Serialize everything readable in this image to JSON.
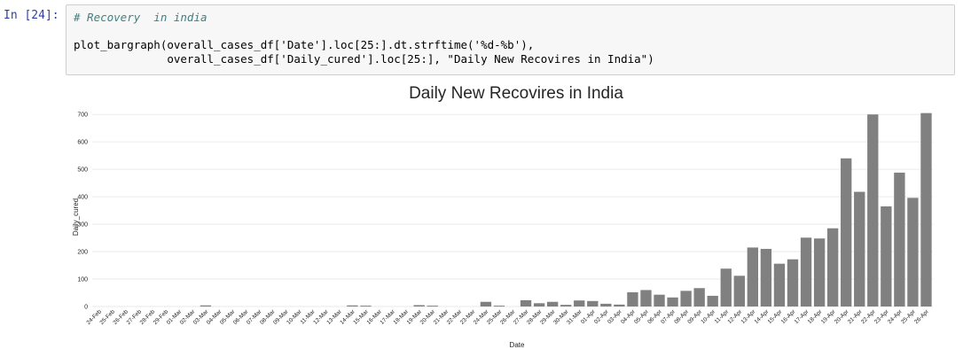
{
  "cell": {
    "prompt": "In [24]:",
    "code": {
      "line1": "# Recovery  in india",
      "line2": "",
      "line3": "plot_bargraph(overall_cases_df['Date'].loc[25:].dt.strftime('%d-%b'),",
      "line4": "              overall_cases_df['Daily_cured'].loc[25:], \"Daily New Recovires in India\")"
    }
  },
  "chart_data": {
    "type": "bar",
    "title": "Daily New Recovires in India",
    "xlabel": "Date",
    "ylabel": "Daily_cured",
    "ylim": [
      0,
      720
    ],
    "yticks": [
      0,
      100,
      200,
      300,
      400,
      500,
      600,
      700
    ],
    "grid": true,
    "bar_color": "#808080",
    "categories": [
      "24-Feb",
      "25-Feb",
      "26-Feb",
      "27-Feb",
      "28-Feb",
      "29-Feb",
      "01-Mar",
      "02-Mar",
      "03-Mar",
      "04-Mar",
      "05-Mar",
      "06-Mar",
      "07-Mar",
      "08-Mar",
      "09-Mar",
      "10-Mar",
      "11-Mar",
      "12-Mar",
      "13-Mar",
      "14-Mar",
      "15-Mar",
      "16-Mar",
      "17-Mar",
      "18-Mar",
      "19-Mar",
      "20-Mar",
      "21-Mar",
      "22-Mar",
      "23-Mar",
      "24-Mar",
      "25-Mar",
      "26-Mar",
      "27-Mar",
      "28-Mar",
      "29-Mar",
      "30-Mar",
      "31-Mar",
      "01-Apr",
      "02-Apr",
      "03-Apr",
      "04-Apr",
      "05-Apr",
      "06-Apr",
      "07-Apr",
      "08-Apr",
      "09-Apr",
      "10-Apr",
      "11-Apr",
      "12-Apr",
      "13-Apr",
      "14-Apr",
      "15-Apr",
      "16-Apr",
      "17-Apr",
      "18-Apr",
      "19-Apr",
      "20-Apr",
      "21-Apr",
      "22-Apr",
      "23-Apr",
      "24-Apr",
      "25-Apr",
      "26-Apr"
    ],
    "values": [
      0,
      0,
      0,
      0,
      0,
      0,
      0,
      0,
      4,
      0,
      0,
      0,
      0,
      0,
      0,
      0,
      0,
      0,
      0,
      4,
      3,
      0,
      0,
      0,
      5,
      3,
      0,
      0,
      0,
      17,
      3,
      0,
      23,
      12,
      17,
      6,
      22,
      20,
      10,
      7,
      52,
      60,
      43,
      33,
      57,
      67,
      39,
      138,
      112,
      215,
      210,
      156,
      172,
      251,
      248,
      285,
      540,
      418,
      700,
      365,
      488,
      396,
      705
    ]
  }
}
